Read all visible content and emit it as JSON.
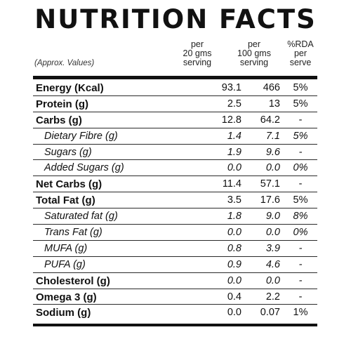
{
  "title": "NUTRITION FACTS",
  "header": {
    "approx": "(Approx. Values)",
    "col1": [
      "per",
      "20 gms",
      "serving"
    ],
    "col2": [
      "per",
      "100 gms",
      "serving"
    ],
    "col3": [
      "%RDA",
      "per",
      "serve"
    ]
  },
  "rows": [
    {
      "label": "Energy (Kcal)",
      "v1": "93.1",
      "v2": "466",
      "v3": "5%",
      "style": "bold"
    },
    {
      "label": "Protein (g)",
      "v1": "2.5",
      "v2": "13",
      "v3": "5%",
      "style": "bold"
    },
    {
      "label": "Carbs (g)",
      "v1": "12.8",
      "v2": "64.2",
      "v3": "-",
      "style": "bold"
    },
    {
      "label": "Dietary Fibre (g)",
      "v1": "1.4",
      "v2": "7.1",
      "v3": "5%",
      "style": "sub"
    },
    {
      "label": "Sugars (g)",
      "v1": "1.9",
      "v2": "9.6",
      "v3": "-",
      "style": "sub"
    },
    {
      "label": "Added Sugars (g)",
      "v1": "0.0",
      "v2": "0.0",
      "v3": "0%",
      "style": "sub"
    },
    {
      "label": "Net Carbs (g)",
      "v1": "11.4",
      "v2": "57.1",
      "v3": "-",
      "style": "bold"
    },
    {
      "label": "Total Fat (g)",
      "v1": "3.5",
      "v2": "17.6",
      "v3": "5%",
      "style": "bold"
    },
    {
      "label": "Saturated fat (g)",
      "v1": "1.8",
      "v2": "9.0",
      "v3": "8%",
      "style": "sub"
    },
    {
      "label": "Trans Fat (g)",
      "v1": "0.0",
      "v2": "0.0",
      "v3": "0%",
      "style": "sub"
    },
    {
      "label": "MUFA (g)",
      "v1": "0.8",
      "v2": "3.9",
      "v3": "-",
      "style": "sub"
    },
    {
      "label": "PUFA (g)",
      "v1": "0.9",
      "v2": "4.6",
      "v3": "-",
      "style": "sub"
    },
    {
      "label": "Cholesterol (g)",
      "v1": "0.0",
      "v2": "0.0",
      "v3": "-",
      "style": "bold-italic-values"
    },
    {
      "label": "Omega 3 (g)",
      "v1": "0.4",
      "v2": "2.2",
      "v3": "-",
      "style": "bold"
    },
    {
      "label": "Sodium (g)",
      "v1": "0.0",
      "v2": "0.07",
      "v3": "1%",
      "style": "bold"
    }
  ]
}
